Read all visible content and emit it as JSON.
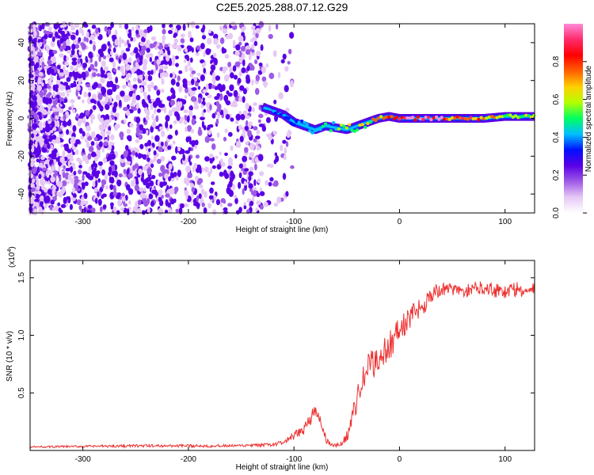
{
  "title": "C2E5.2025.288.07.12.G29",
  "chart_data": [
    {
      "type": "heatmap",
      "name": "spectrogram",
      "xlabel": "Height of straight line (km)",
      "ylabel": "Frequency (Hz)",
      "xlim": [
        -350,
        128
      ],
      "ylim": [
        -50,
        50
      ],
      "xticks": [
        -300,
        -200,
        -100,
        0,
        100
      ],
      "xtick_labels": [
        "-300",
        "-200",
        "-100",
        "0",
        "100"
      ],
      "yticks": [
        -40,
        -20,
        0,
        20,
        40
      ],
      "ytick_labels": [
        "-40",
        "-20",
        "0",
        "20",
        "40"
      ],
      "colorbar": {
        "label": "Normalized spectral amplitude",
        "range": [
          0,
          1
        ],
        "ticks": [
          0.0,
          0.2,
          0.4,
          0.6,
          0.8
        ],
        "tick_labels": [
          "0.0",
          "0.2",
          "0.4",
          "0.6",
          "0.8"
        ],
        "colors": [
          "#ffffff",
          "#e6c8f5",
          "#9e5ae6",
          "#5a00e6",
          "#0010ff",
          "#00c0ff",
          "#00ff60",
          "#b4ff00",
          "#ffd000",
          "#ff6000",
          "#ff0000",
          "#ff2a6a",
          "#ff8ad8"
        ]
      },
      "ridge": {
        "x": [
          -130,
          -120,
          -110,
          -100,
          -90,
          -80,
          -70,
          -60,
          -50,
          -40,
          -30,
          -20,
          -10,
          0,
          20,
          40,
          60,
          80,
          100,
          128
        ],
        "freq": [
          6,
          4,
          2,
          -2,
          -4,
          -6,
          -4,
          -5,
          -6,
          -4,
          -2,
          0,
          1,
          0,
          0,
          0,
          0,
          0,
          1,
          1
        ],
        "amp": [
          0.25,
          0.3,
          0.32,
          0.35,
          0.4,
          0.45,
          0.5,
          0.55,
          0.6,
          0.62,
          0.65,
          0.7,
          0.8,
          0.95,
          1.0,
          0.95,
          0.9,
          0.8,
          0.7,
          0.6
        ]
      }
    },
    {
      "type": "line",
      "name": "snr",
      "xlabel": "Height of straight line (km)",
      "ylabel": "SNR (10 * v/v)",
      "y_multiplier": "(x10",
      "y_multiplier_exp": "4",
      "y_multiplier_close": ")",
      "xlim": [
        -350,
        128
      ],
      "ylim": [
        0,
        1.65
      ],
      "xticks": [
        -300,
        -200,
        -100,
        0,
        100
      ],
      "xtick_labels": [
        "-300",
        "-200",
        "-100",
        "0",
        "100"
      ],
      "yticks": [
        0.5,
        1.0,
        1.5
      ],
      "ytick_labels": [
        "0.5",
        "1.0",
        "1.5"
      ],
      "color": "#ee3030",
      "series": [
        {
          "name": "SNR",
          "x": [
            -350,
            -300,
            -250,
            -200,
            -150,
            -120,
            -110,
            -100,
            -95,
            -90,
            -85,
            -80,
            -75,
            -70,
            -65,
            -60,
            -55,
            -50,
            -45,
            -40,
            -35,
            -30,
            -25,
            -20,
            -15,
            -10,
            -5,
            0,
            5,
            10,
            15,
            20,
            25,
            30,
            35,
            40,
            50,
            60,
            70,
            80,
            90,
            100,
            110,
            120,
            128
          ],
          "y": [
            0.03,
            0.035,
            0.04,
            0.04,
            0.04,
            0.05,
            0.07,
            0.12,
            0.15,
            0.2,
            0.28,
            0.32,
            0.26,
            0.1,
            0.05,
            0.04,
            0.06,
            0.12,
            0.28,
            0.45,
            0.6,
            0.72,
            0.75,
            0.8,
            0.85,
            0.9,
            0.98,
            1.05,
            1.1,
            1.15,
            1.2,
            1.25,
            1.3,
            1.35,
            1.38,
            1.4,
            1.4,
            1.38,
            1.4,
            1.42,
            1.4,
            1.38,
            1.4,
            1.38,
            1.4
          ],
          "noise": [
            0.008,
            0.01,
            0.012,
            0.012,
            0.012,
            0.015,
            0.02,
            0.04,
            0.05,
            0.06,
            0.07,
            0.08,
            0.07,
            0.04,
            0.02,
            0.015,
            0.02,
            0.05,
            0.08,
            0.1,
            0.12,
            0.13,
            0.14,
            0.14,
            0.14,
            0.13,
            0.12,
            0.12,
            0.12,
            0.11,
            0.1,
            0.1,
            0.1,
            0.08,
            0.07,
            0.06,
            0.05,
            0.05,
            0.06,
            0.06,
            0.07,
            0.08,
            0.07,
            0.06,
            0.06
          ]
        }
      ]
    }
  ]
}
